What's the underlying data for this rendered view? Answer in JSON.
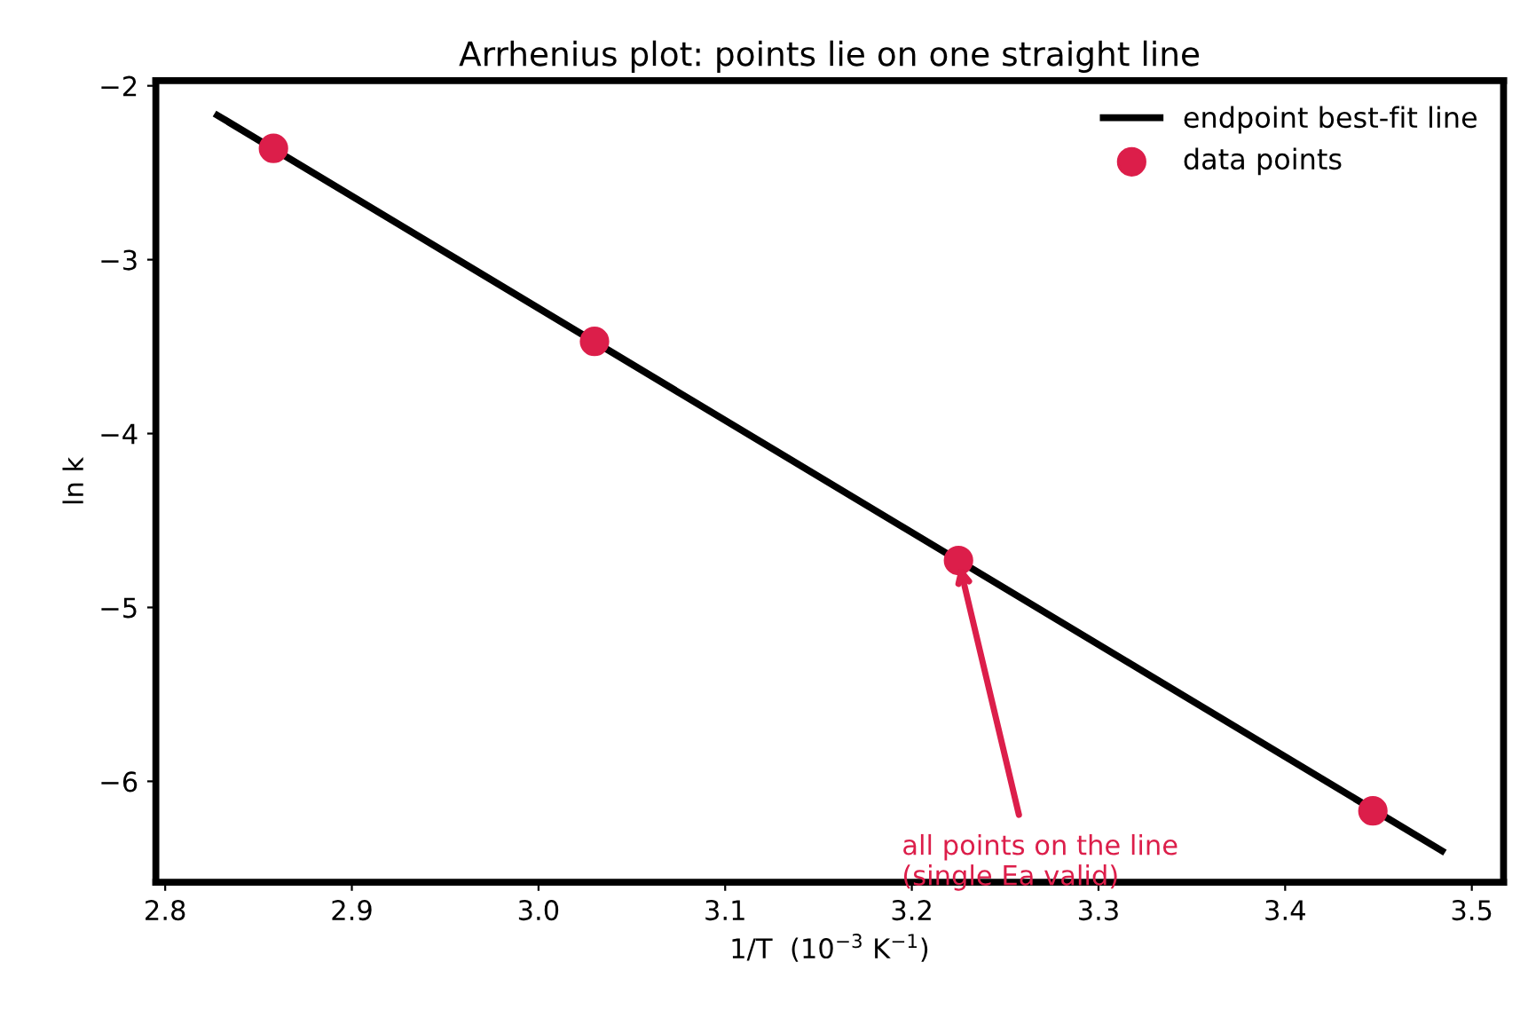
{
  "chart_data": {
    "type": "scatter",
    "title": "Arrhenius plot: points lie on one straight line",
    "xlabel": "1/T  (10$^{−3}$ K$^{−1}$)",
    "ylabel": "ln k",
    "series": [
      {
        "name": "endpoint best-fit line",
        "type": "line",
        "color": "#000000",
        "x": [
          2.828,
          3.484
        ],
        "values": [
          -2.17,
          -6.4
        ],
        "marker": "none",
        "line_style": "solid"
      },
      {
        "name": "data points",
        "color": "#dc1e4a",
        "x": [
          2.858,
          3.03,
          3.225,
          3.447
        ],
        "values": [
          -2.36,
          -3.47,
          -4.73,
          -6.17
        ],
        "marker": "circle"
      }
    ],
    "annotations": [
      {
        "text": "all points on the line\n(single Ea valid)",
        "x": 3.225,
        "y": -4.73
      }
    ],
    "xlim": [
      2.795,
      3.517
    ],
    "ylim": [
      -6.58,
      -1.97
    ],
    "xticks": [
      {
        "value": 2.8,
        "label": "2.8"
      },
      {
        "value": 2.9,
        "label": "2.9"
      },
      {
        "value": 3.0,
        "label": "3.0"
      },
      {
        "value": 3.1,
        "label": "3.1"
      },
      {
        "value": 3.2,
        "label": "3.2"
      },
      {
        "value": 3.3,
        "label": "3.3"
      },
      {
        "value": 3.4,
        "label": "3.4"
      },
      {
        "value": 3.5,
        "label": "3.5"
      }
    ],
    "yticks": [
      {
        "value": -6,
        "label": "−6"
      },
      {
        "value": -5,
        "label": "−5"
      },
      {
        "value": -4,
        "label": "−4"
      },
      {
        "value": -3,
        "label": "−3"
      },
      {
        "value": -2,
        "label": "−2"
      }
    ],
    "grid": false,
    "legend": "top right"
  }
}
